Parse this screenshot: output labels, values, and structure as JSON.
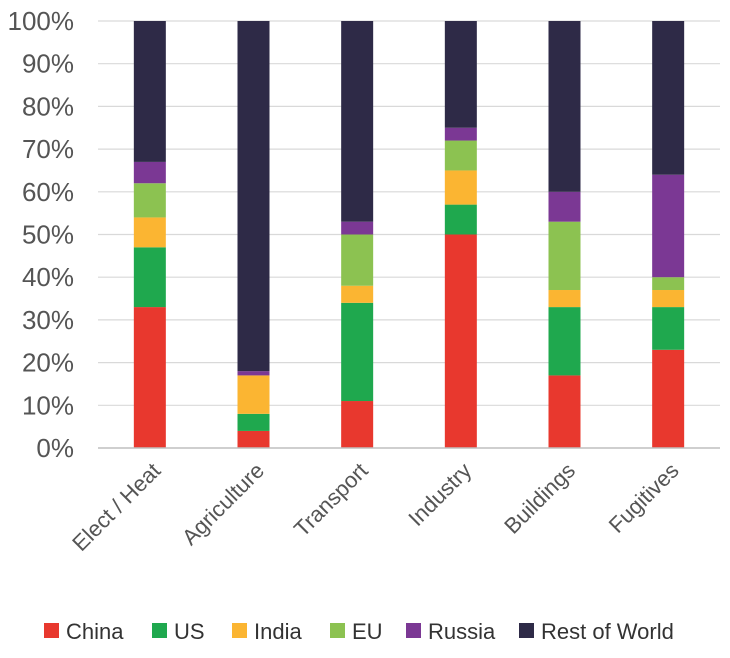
{
  "chart_data": {
    "type": "bar",
    "stacked": true,
    "title": "",
    "xlabel": "",
    "ylabel": "",
    "ylim": [
      0,
      100
    ],
    "grid": true,
    "legend_position": "bottom",
    "yticks": [
      "0%",
      "10%",
      "20%",
      "30%",
      "40%",
      "50%",
      "60%",
      "70%",
      "80%",
      "90%",
      "100%"
    ],
    "categories": [
      "Elect / Heat",
      "Agriculture",
      "Transport",
      "Industry",
      "Buildings",
      "Fugitives"
    ],
    "series": [
      {
        "name": "China",
        "color": "#e8382e",
        "values": [
          33,
          4,
          11,
          50,
          17,
          23
        ]
      },
      {
        "name": "US",
        "color": "#1fa84e",
        "values": [
          14,
          4,
          23,
          7,
          16,
          10
        ]
      },
      {
        "name": "India",
        "color": "#fbb532",
        "values": [
          7,
          9,
          4,
          8,
          4,
          4
        ]
      },
      {
        "name": "EU",
        "color": "#8cc251",
        "values": [
          8,
          0,
          12,
          7,
          16,
          3
        ]
      },
      {
        "name": "Russia",
        "color": "#7b3894",
        "values": [
          5,
          1,
          3,
          3,
          7,
          24
        ]
      },
      {
        "name": "Rest of World",
        "color": "#2e2a47",
        "values": [
          33,
          82,
          47,
          25,
          40,
          36
        ]
      }
    ]
  }
}
